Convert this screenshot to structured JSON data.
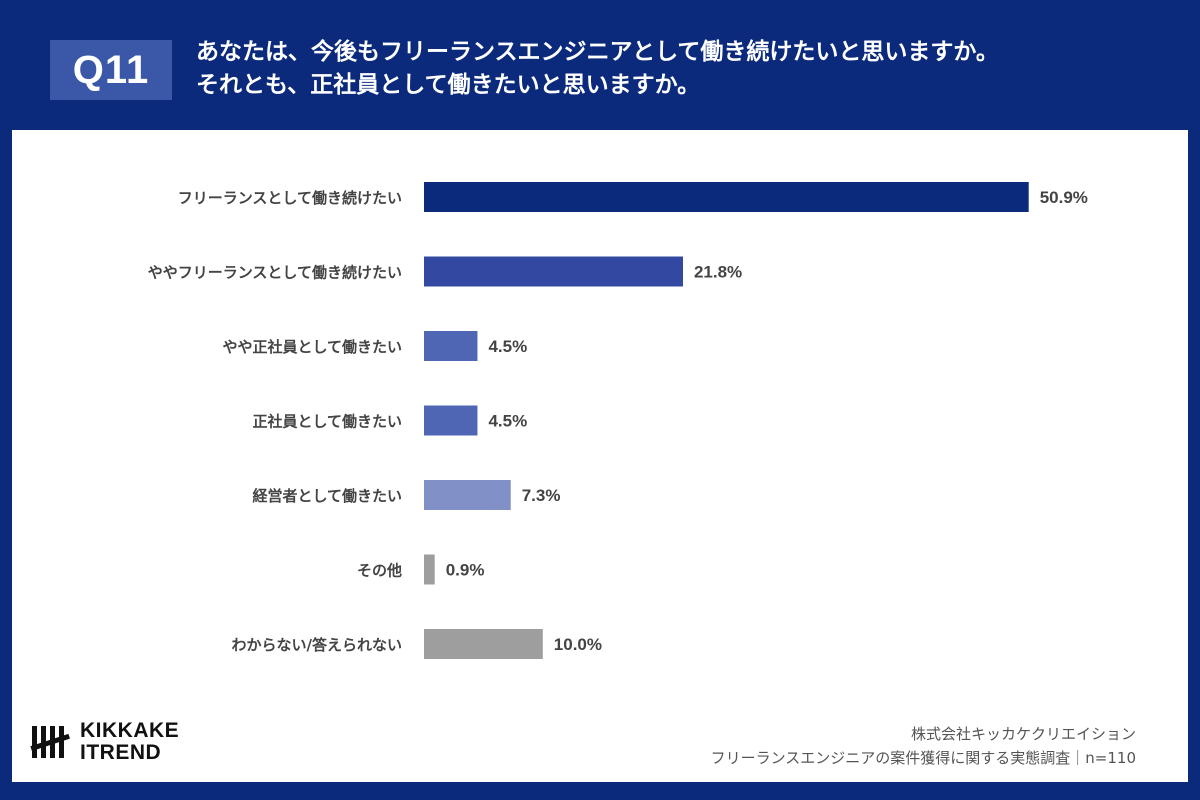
{
  "header": {
    "badge": "Q11",
    "question_line1": "あなたは、今後もフリーランスエンジニアとして働き続けたいと思いますか。",
    "question_line2": "それとも、正社員として働きたいと思いますか。"
  },
  "chart_data": {
    "type": "bar",
    "orientation": "horizontal",
    "categories": [
      "フリーランスとして働き続けたい",
      "ややフリーランスとして働き続けたい",
      "やや正社員として働きたい",
      "正社員として働きたい",
      "経営者として働きたい",
      "その他",
      "わからない/答えられない"
    ],
    "values": [
      50.9,
      21.8,
      4.5,
      4.5,
      7.3,
      0.9,
      10.0
    ],
    "value_labels": [
      "50.9%",
      "21.8%",
      "4.5%",
      "4.5%",
      "7.3%",
      "0.9%",
      "10.0%"
    ],
    "bar_colors": [
      "#0b2a7c",
      "#3348a0",
      "#4f66b4",
      "#4f66b4",
      "#8290c8",
      "#9e9e9e",
      "#9e9e9e"
    ],
    "grid": false,
    "legend": "none"
  },
  "footer": {
    "company": "株式会社キッカケクリエイション",
    "survey": "フリーランスエンジニアの案件獲得に関する実態調査｜n=110",
    "logo_line1": "KIKKAKE",
    "logo_line2": "ITREND"
  },
  "colors": {
    "brand_navy": "#0b2a7c",
    "badge_blue": "#3a57a8",
    "panel_bg": "#ffffff",
    "label_text": "#444444"
  }
}
